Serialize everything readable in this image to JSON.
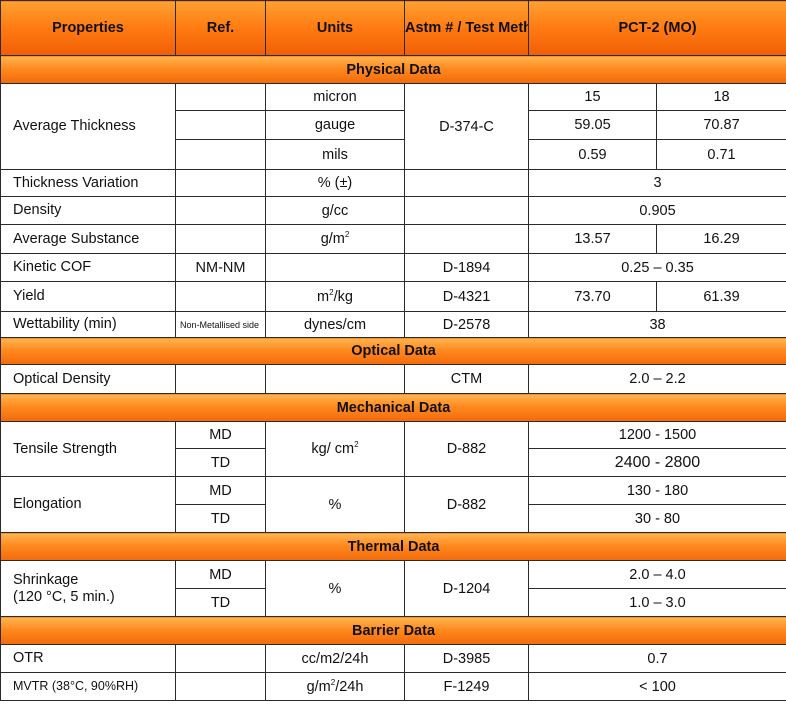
{
  "header": {
    "properties": "Properties",
    "ref": "Ref.",
    "units": "Units",
    "method": "Astm # / Test Method",
    "product": "PCT-2 (MO)"
  },
  "sections": {
    "physical": "Physical Data",
    "optical": "Optical Data",
    "mechanical": "Mechanical Data",
    "thermal": "Thermal Data",
    "barrier": "Barrier Data"
  },
  "physical": {
    "avg_thickness": {
      "label": "Average Thickness",
      "method": "D-374-C",
      "rows": [
        {
          "unit": "micron",
          "v1": "15",
          "v2": "18"
        },
        {
          "unit": "gauge",
          "v1": "59.05",
          "v2": "70.87"
        },
        {
          "unit": "mils",
          "v1": "0.59",
          "v2": "0.71"
        }
      ]
    },
    "thickness_variation": {
      "label": "Thickness Variation",
      "unit": "% (±)",
      "value": "3"
    },
    "density": {
      "label": "Density",
      "unit": "g/cc",
      "value": "0.905"
    },
    "avg_substance": {
      "label": "Average Substance",
      "unit_base": "g/m",
      "unit_sup": "2",
      "v1": "13.57",
      "v2": "16.29"
    },
    "kinetic_cof": {
      "label": "Kinetic COF",
      "ref": "NM-NM",
      "method": "D-1894",
      "value": "0.25 – 0.35"
    },
    "yield": {
      "label": "Yield",
      "unit_base": "m",
      "unit_sup": "2",
      "unit_tail": "/kg",
      "method": "D-4321",
      "v1": "73.70",
      "v2": "61.39"
    },
    "wettability": {
      "label": "Wettability (min)",
      "ref": "Non-Metallised side",
      "unit": "dynes/cm",
      "method": "D-2578",
      "value": "38"
    }
  },
  "optical": {
    "optical_density": {
      "label": "Optical Density",
      "method": "CTM",
      "value": "2.0 – 2.2"
    }
  },
  "mechanical": {
    "tensile": {
      "label": "Tensile Strength",
      "unit_base": "kg/ cm",
      "unit_sup": "2",
      "method": "D-882",
      "md_ref": "MD",
      "md_value": "1200 - 1500",
      "td_ref": "TD",
      "td_value": "2400  -  2800"
    },
    "elongation": {
      "label": "Elongation",
      "unit": "%",
      "method": "D-882",
      "md_ref": "MD",
      "md_value": "130 - 180",
      "td_ref": "TD",
      "td_value": "30 - 80"
    }
  },
  "thermal": {
    "shrinkage": {
      "label_line1": "Shrinkage",
      "label_line2": "(120 °C, 5 min.)",
      "unit": "%",
      "method": "D-1204",
      "md_ref": "MD",
      "md_value": "2.0 – 4.0",
      "td_ref": "TD",
      "td_value": "1.0 – 3.0"
    }
  },
  "barrier": {
    "otr": {
      "label": "OTR",
      "unit": "cc/m2/24h",
      "method": "D-3985",
      "value": "0.7"
    },
    "mvtr": {
      "label": "MVTR  (38°C, 90%RH)",
      "unit_base": "g/m",
      "unit_sup": "2",
      "unit_tail": "/24h",
      "method": "F-1249",
      "value": "< 100"
    }
  }
}
